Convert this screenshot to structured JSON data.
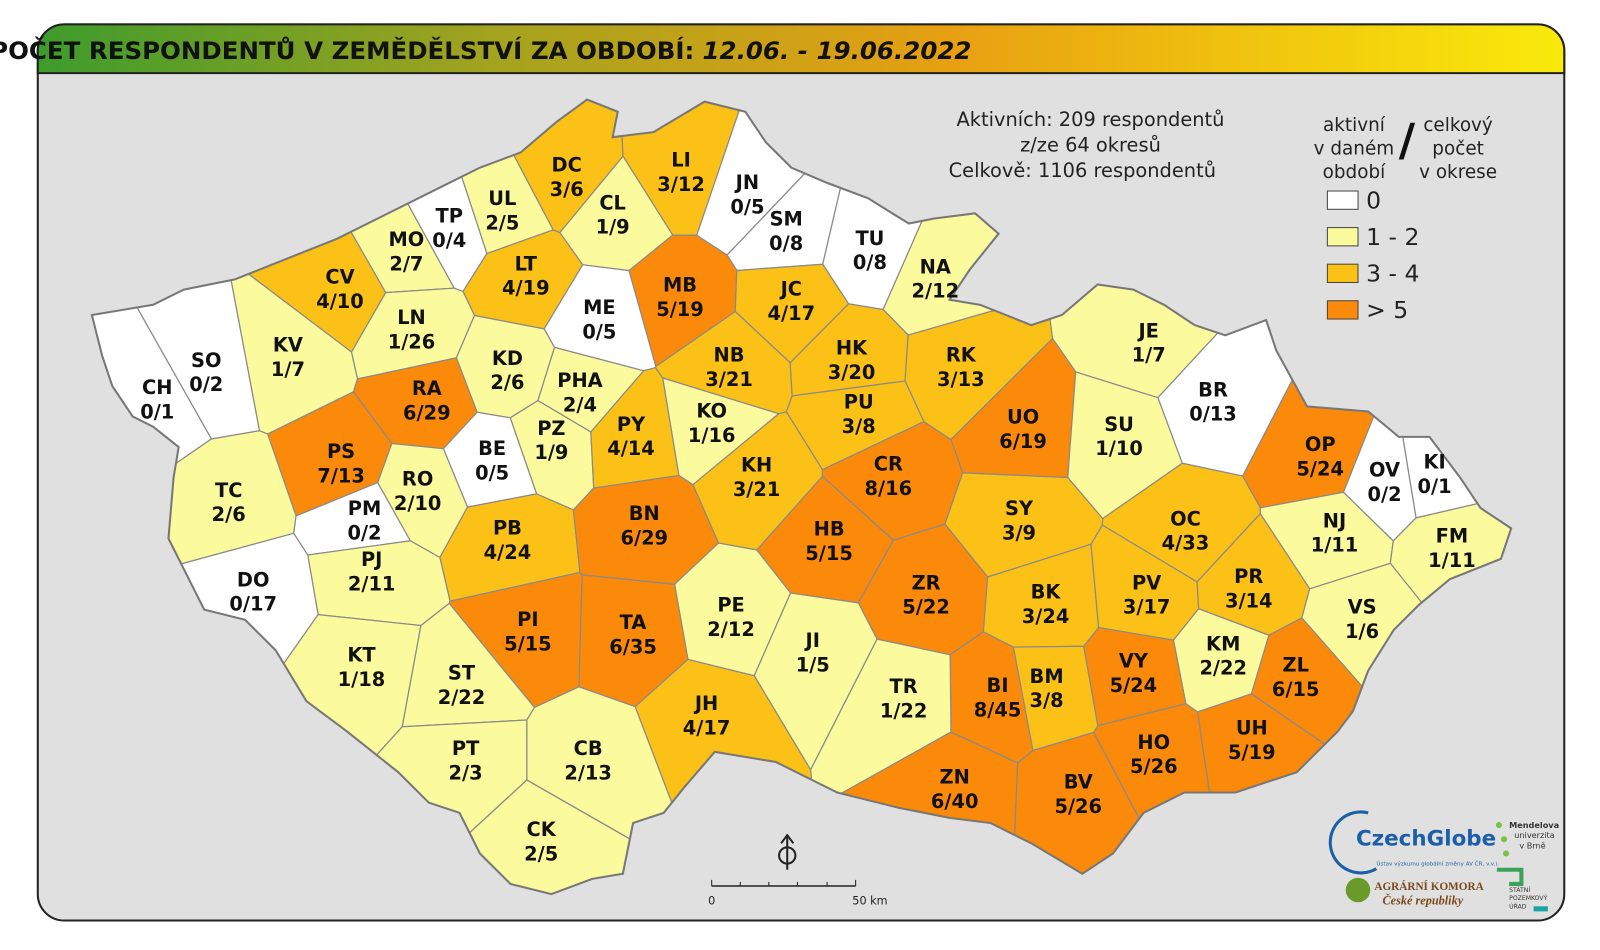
{
  "header": {
    "title": "POČET RESPONDENTŮ V ZEMĚDĚLSTVÍ ZA OBDOBÍ:",
    "period": "12.06. - 19.06.2022"
  },
  "summary": [
    "Aktivních: 209 respondentů",
    "z/ze 64 okresů",
    "Celkově: 1106 respondentů"
  ],
  "legend": {
    "heading_left": [
      "aktivní",
      "v daném",
      "období"
    ],
    "separator": "/",
    "heading_right": [
      "celkový",
      "počet",
      "v okrese"
    ],
    "items": [
      {
        "label": "0",
        "color": "#ffffff"
      },
      {
        "label": "1 - 2",
        "color": "#fbfa9c"
      },
      {
        "label": "3 - 4",
        "color": "#fcc116"
      },
      {
        "label": "> 5",
        "color": "#fb8a0b"
      }
    ]
  },
  "districts": [
    {
      "code": "DC",
      "count": "3/6",
      "color": "#fcc116"
    },
    {
      "code": "LI",
      "count": "3/12",
      "color": "#fcc116"
    },
    {
      "code": "JN",
      "count": "0/5",
      "color": "#ffffff"
    },
    {
      "code": "UL",
      "count": "2/5",
      "color": "#fbfa9c"
    },
    {
      "code": "CL",
      "count": "1/9",
      "color": "#fbfa9c"
    },
    {
      "code": "TP",
      "count": "0/4",
      "color": "#ffffff"
    },
    {
      "code": "SM",
      "count": "0/8",
      "color": "#ffffff"
    },
    {
      "code": "TU",
      "count": "0/8",
      "color": "#ffffff"
    },
    {
      "code": "MO",
      "count": "2/7",
      "color": "#fbfa9c"
    },
    {
      "code": "NA",
      "count": "2/12",
      "color": "#fbfa9c"
    },
    {
      "code": "CV",
      "count": "4/10",
      "color": "#fcc116"
    },
    {
      "code": "LT",
      "count": "4/19",
      "color": "#fcc116"
    },
    {
      "code": "MB",
      "count": "5/19",
      "color": "#fb8a0b"
    },
    {
      "code": "JC",
      "count": "4/17",
      "color": "#fcc116"
    },
    {
      "code": "ME",
      "count": "0/5",
      "color": "#ffffff"
    },
    {
      "code": "KV",
      "count": "1/7",
      "color": "#fbfa9c"
    },
    {
      "code": "LN",
      "count": "1/26",
      "color": "#fbfa9c"
    },
    {
      "code": "JE",
      "count": "1/7",
      "color": "#fbfa9c"
    },
    {
      "code": "SO",
      "count": "0/2",
      "color": "#ffffff"
    },
    {
      "code": "KD",
      "count": "2/6",
      "color": "#fbfa9c"
    },
    {
      "code": "NB",
      "count": "3/21",
      "color": "#fcc116"
    },
    {
      "code": "HK",
      "count": "3/20",
      "color": "#fcc116"
    },
    {
      "code": "RK",
      "count": "3/13",
      "color": "#fcc116"
    },
    {
      "code": "CH",
      "count": "0/1",
      "color": "#ffffff"
    },
    {
      "code": "RA",
      "count": "6/29",
      "color": "#fb8a0b"
    },
    {
      "code": "PHA",
      "count": "2/4",
      "color": "#fbfa9c"
    },
    {
      "code": "BR",
      "count": "0/13",
      "color": "#ffffff"
    },
    {
      "code": "KO",
      "count": "1/16",
      "color": "#fbfa9c"
    },
    {
      "code": "PU",
      "count": "3/8",
      "color": "#fcc116"
    },
    {
      "code": "UO",
      "count": "6/19",
      "color": "#fb8a0b"
    },
    {
      "code": "PS",
      "count": "7/13",
      "color": "#fb8a0b"
    },
    {
      "code": "PZ",
      "count": "1/9",
      "color": "#fbfa9c"
    },
    {
      "code": "PY",
      "count": "4/14",
      "color": "#fcc116"
    },
    {
      "code": "BE",
      "count": "0/5",
      "color": "#ffffff"
    },
    {
      "code": "SU",
      "count": "1/10",
      "color": "#fbfa9c"
    },
    {
      "code": "OP",
      "count": "5/24",
      "color": "#fb8a0b"
    },
    {
      "code": "KI",
      "count": "0/1",
      "color": "#ffffff"
    },
    {
      "code": "OV",
      "count": "0/2",
      "color": "#ffffff"
    },
    {
      "code": "TC",
      "count": "2/6",
      "color": "#fbfa9c"
    },
    {
      "code": "RO",
      "count": "2/10",
      "color": "#fbfa9c"
    },
    {
      "code": "KH",
      "count": "3/21",
      "color": "#fcc116"
    },
    {
      "code": "CR",
      "count": "8/16",
      "color": "#fb8a0b"
    },
    {
      "code": "SY",
      "count": "3/9",
      "color": "#fcc116"
    },
    {
      "code": "PB",
      "count": "4/24",
      "color": "#fcc116"
    },
    {
      "code": "BN",
      "count": "6/29",
      "color": "#fb8a0b"
    },
    {
      "code": "HB",
      "count": "5/15",
      "color": "#fb8a0b"
    },
    {
      "code": "OC",
      "count": "4/33",
      "color": "#fcc116"
    },
    {
      "code": "NJ",
      "count": "1/11",
      "color": "#fbfa9c"
    },
    {
      "code": "FM",
      "count": "1/11",
      "color": "#fbfa9c"
    },
    {
      "code": "PM",
      "count": "0/2",
      "color": "#ffffff"
    },
    {
      "code": "PJ",
      "count": "2/11",
      "color": "#fbfa9c"
    },
    {
      "code": "DO",
      "count": "0/17",
      "color": "#ffffff"
    },
    {
      "code": "ZR",
      "count": "5/22",
      "color": "#fb8a0b"
    },
    {
      "code": "BK",
      "count": "3/24",
      "color": "#fcc116"
    },
    {
      "code": "PV",
      "count": "3/17",
      "color": "#fcc116"
    },
    {
      "code": "PR",
      "count": "3/14",
      "color": "#fcc116"
    },
    {
      "code": "PE",
      "count": "2/12",
      "color": "#fbfa9c"
    },
    {
      "code": "VS",
      "count": "1/6",
      "color": "#fbfa9c"
    },
    {
      "code": "PI",
      "count": "5/15",
      "color": "#fb8a0b"
    },
    {
      "code": "TA",
      "count": "6/35",
      "color": "#fb8a0b"
    },
    {
      "code": "JI",
      "count": "1/5",
      "color": "#fbfa9c"
    },
    {
      "code": "KM",
      "count": "2/22",
      "color": "#fbfa9c"
    },
    {
      "code": "KT",
      "count": "1/18",
      "color": "#fbfa9c"
    },
    {
      "code": "ST",
      "count": "2/22",
      "color": "#fbfa9c"
    },
    {
      "code": "ZL",
      "count": "6/15",
      "color": "#fb8a0b"
    },
    {
      "code": "BM",
      "count": "3/8",
      "color": "#fcc116"
    },
    {
      "code": "BI",
      "count": "8/45",
      "color": "#fb8a0b"
    },
    {
      "code": "VY",
      "count": "5/24",
      "color": "#fb8a0b"
    },
    {
      "code": "TR",
      "count": "1/22",
      "color": "#fbfa9c"
    },
    {
      "code": "JH",
      "count": "4/17",
      "color": "#fcc116"
    },
    {
      "code": "UH",
      "count": "5/19",
      "color": "#fb8a0b"
    },
    {
      "code": "HO",
      "count": "5/26",
      "color": "#fb8a0b"
    },
    {
      "code": "PT",
      "count": "2/3",
      "color": "#fbfa9c"
    },
    {
      "code": "CB",
      "count": "2/13",
      "color": "#fbfa9c"
    },
    {
      "code": "ZN",
      "count": "6/40",
      "color": "#fb8a0b"
    },
    {
      "code": "BV",
      "count": "5/26",
      "color": "#fb8a0b"
    },
    {
      "code": "CK",
      "count": "2/5",
      "color": "#fbfa9c"
    }
  ],
  "scale_bar": {
    "start": "0",
    "end": "50 km"
  },
  "logos": {
    "czechglobe": "CzechGlobe",
    "czechglobe_sub": "Ústav výzkumu globální změny AV ČR, v.v.i.",
    "mendelu": [
      "Mendelova",
      "univerzita",
      "v Brně"
    ],
    "agrarni": [
      "AGRÁRNÍ KOMORA",
      "České republiky"
    ],
    "spu": [
      "STÁTNÍ",
      "POZEMKOVÝ",
      "ÚŘAD"
    ]
  }
}
